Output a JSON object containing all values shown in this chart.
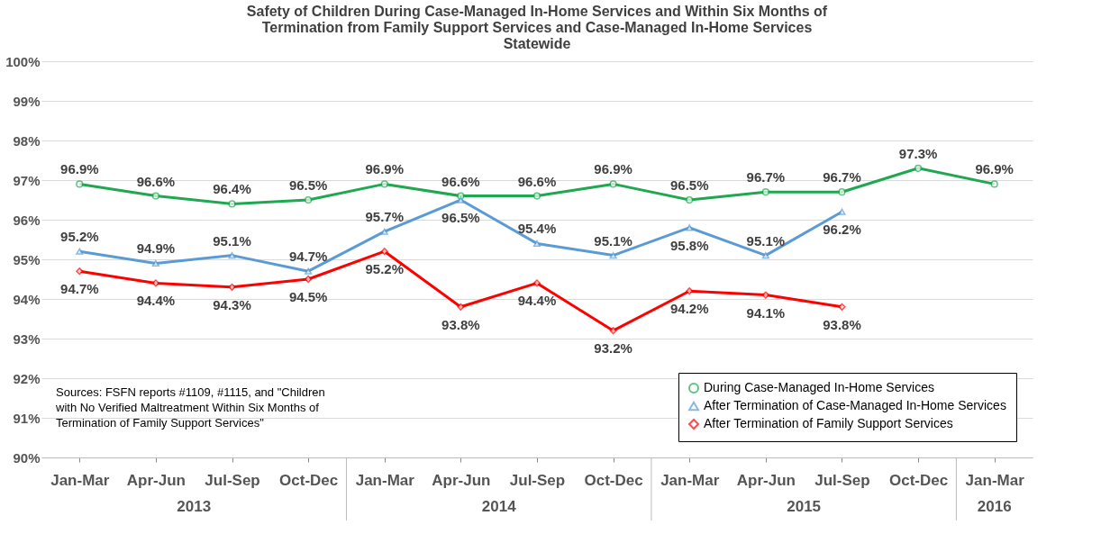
{
  "chart_data": {
    "type": "line",
    "title": [
      "Safety of Children During Case-Managed In-Home Services and Within Six Months of",
      "Termination from Family Support Services and Case-Managed In-Home Services",
      "Statewide"
    ],
    "categories": [
      "Jan-Mar",
      "Apr-Jun",
      "Jul-Sep",
      "Oct-Dec",
      "Jan-Mar",
      "Apr-Jun",
      "Jul-Sep",
      "Oct-Dec",
      "Jan-Mar",
      "Apr-Jun",
      "Jul-Sep",
      "Oct-Dec",
      "Jan-Mar"
    ],
    "series": [
      {
        "name": "During Case-Managed In-Home Services",
        "color": "#1fa84f",
        "marker": "circle",
        "values": [
          96.9,
          96.6,
          96.4,
          96.5,
          96.9,
          96.6,
          96.6,
          96.9,
          96.5,
          96.7,
          96.7,
          97.3,
          96.9
        ],
        "value_labels": [
          "96.9%",
          "96.6%",
          "96.4%",
          "96.5%",
          "96.9%",
          "96.6%",
          "96.6%",
          "96.9%",
          "96.5%",
          "96.7%",
          "96.7%",
          "97.3%",
          "96.9%"
        ]
      },
      {
        "name": "After Termination of Case-Managed In-Home Services",
        "color": "#5b9bd5",
        "marker": "triangle",
        "values": [
          95.2,
          94.9,
          95.1,
          94.7,
          95.7,
          96.5,
          95.4,
          95.1,
          95.8,
          95.1,
          96.2,
          null,
          null
        ],
        "value_labels": [
          "95.2%",
          "94.9%",
          "95.1%",
          "94.7%",
          "95.7%",
          "96.5%",
          "95.4%",
          "95.1%",
          "95.8%",
          "95.1%",
          "96.2%",
          null,
          null
        ]
      },
      {
        "name": "After Termination of Family Support Services",
        "color": "#ff0000",
        "marker": "diamond",
        "values": [
          94.7,
          94.4,
          94.3,
          94.5,
          95.2,
          93.8,
          94.4,
          93.2,
          94.2,
          94.1,
          93.8,
          null,
          null
        ],
        "value_labels": [
          "94.7%",
          "94.4%",
          "94.3%",
          "94.5%",
          "95.2%",
          "93.8%",
          "94.4%",
          "93.2%",
          "94.2%",
          "94.1%",
          "93.8%",
          null,
          null
        ]
      }
    ],
    "ylim": [
      90,
      100
    ],
    "yticks": [
      {
        "value": 90,
        "label": "90%"
      },
      {
        "value": 91,
        "label": "91%"
      },
      {
        "value": 92,
        "label": "92%"
      },
      {
        "value": 93,
        "label": "93%"
      },
      {
        "value": 94,
        "label": "94%"
      },
      {
        "value": 95,
        "label": "95%"
      },
      {
        "value": 96,
        "label": "96%"
      },
      {
        "value": 97,
        "label": "97%"
      },
      {
        "value": 98,
        "label": "98%"
      },
      {
        "value": 99,
        "label": "99%"
      },
      {
        "value": 100,
        "label": "100%"
      }
    ],
    "grid": "y",
    "legend": "bottom right",
    "annotations": [
      "2013",
      "2014",
      "2015",
      "2016",
      "Sources: FSFN reports #1109, #1115, and \"Children with No Verified Maltreatment Within Six Months of Termination of Family Support Services\""
    ]
  }
}
